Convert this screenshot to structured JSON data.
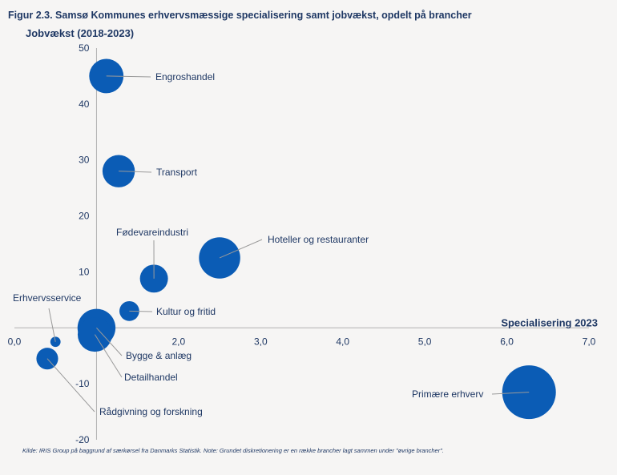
{
  "figure_title": "Figur 2.3. Samsø Kommunes erhvervsmæssige specialisering samt jobvækst, opdelt på brancher",
  "source_note": "Kilde: IRIS Group på baggrund af særkørsel fra Danmarks Statistik. Note: Grundet diskretionering er en række brancher lagt sammen under \"øvrige brancher\".",
  "colors": {
    "bubble": "#0b5cb5",
    "text": "#1f3864",
    "axis": "#b0b0b0",
    "leader": "#9a9a9a"
  },
  "chart_data": {
    "type": "scatter",
    "subtype": "bubble",
    "xlabel": "Specialisering 2023",
    "ylabel": "Jobvækst (2018-2023)",
    "xlim": [
      0,
      7
    ],
    "ylim": [
      -20,
      50
    ],
    "x_ticks": [
      "0,0",
      "1,0",
      "2,0",
      "3,0",
      "4,0",
      "5,0",
      "6,0",
      "7,0"
    ],
    "y_ticks": [
      "50",
      "40",
      "30",
      "20",
      "10",
      "0",
      "-10",
      "-20"
    ],
    "x_tick_values": [
      0,
      1,
      2,
      3,
      4,
      5,
      6,
      7
    ],
    "y_tick_values": [
      50,
      40,
      30,
      20,
      10,
      0,
      -10,
      -20
    ],
    "grid": false,
    "points": [
      {
        "name": "Engroshandel",
        "x": 1.12,
        "y": 45.0,
        "size": 4.5
      },
      {
        "name": "Transport",
        "x": 1.27,
        "y": 28.0,
        "size": 4.0
      },
      {
        "name": "Fødevareindustri",
        "x": 1.7,
        "y": 8.8,
        "size": 3.0
      },
      {
        "name": "Hoteller og restauranter",
        "x": 2.5,
        "y": 12.5,
        "size": 6.5
      },
      {
        "name": "Kultur og fritid",
        "x": 1.4,
        "y": 3.0,
        "size": 1.5
      },
      {
        "name": "Erhvervsservice",
        "x": 0.5,
        "y": -2.5,
        "size": 0.4
      },
      {
        "name": "Bygge & anlæg",
        "x": 1.0,
        "y": 0.0,
        "size": 5.5
      },
      {
        "name": "Detailhandel",
        "x": 0.98,
        "y": -1.2,
        "size": 4.5
      },
      {
        "name": "Rådgivning og forskning",
        "x": 0.4,
        "y": -5.5,
        "size": 1.8
      },
      {
        "name": "Primære erhverv",
        "x": 6.27,
        "y": -11.5,
        "size": 11.0
      }
    ]
  }
}
